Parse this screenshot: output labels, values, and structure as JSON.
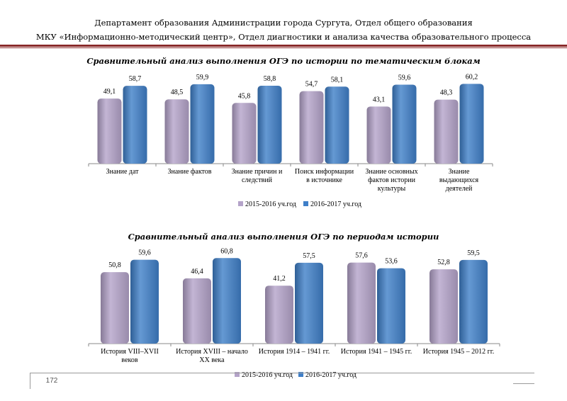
{
  "header": {
    "line1": "Департамент образования Администрации города Сургута, Отдел общего образования",
    "line2": "МКУ «Информационно-методический центр», Отдел диагностики и анализа качества образовательного процесса"
  },
  "footer": {
    "page_number": "172"
  },
  "colors": {
    "series1": "#b4a3c9",
    "series2": "#3f7fc8",
    "rule": "#8a2a2a"
  },
  "chart_data": [
    {
      "type": "bar",
      "title": "Сравнительный анализ выполнения ОГЭ по истории по тематическим блокам",
      "categories": [
        [
          "Знание дат"
        ],
        [
          "Знание фактов"
        ],
        [
          "Знание причин и",
          "следствий"
        ],
        [
          "Поиск информации",
          "в источнике"
        ],
        [
          "Знание основных",
          "фактов истории",
          "культуры"
        ],
        [
          "Знание",
          "выдающихся",
          "деятелей"
        ]
      ],
      "series": [
        {
          "name": "2015-2016 уч.год",
          "values": [
            49.1,
            48.5,
            45.8,
            54.7,
            43.1,
            48.3
          ],
          "labels": [
            "49,1",
            "48,5",
            "45,8",
            "54,7",
            "43,1",
            "48,3"
          ]
        },
        {
          "name": "2016-2017 уч.год",
          "values": [
            58.7,
            59.9,
            58.8,
            58.1,
            59.6,
            60.2
          ],
          "labels": [
            "58,7",
            "59,9",
            "58,8",
            "58,1",
            "59,6",
            "60,2"
          ]
        }
      ],
      "ylim": [
        0,
        70
      ],
      "legend": "bottom"
    },
    {
      "type": "bar",
      "title": "Сравнительный анализ выполнения ОГЭ по периодам истории",
      "categories": [
        [
          "История VIII–XVII",
          "веков"
        ],
        [
          "История XVIII – начало",
          "XX века"
        ],
        [
          "История 1914 – 1941 гг."
        ],
        [
          "История 1941 – 1945 гг."
        ],
        [
          "История 1945 – 2012 гг."
        ]
      ],
      "series": [
        {
          "name": "2015-2016 уч.год",
          "values": [
            50.8,
            46.4,
            41.2,
            57.6,
            52.8
          ],
          "labels": [
            "50,8",
            "46,4",
            "41,2",
            "57,6",
            "52,8"
          ]
        },
        {
          "name": "2016-2017 уч.год",
          "values": [
            59.6,
            60.8,
            57.5,
            53.6,
            59.5
          ],
          "labels": [
            "59,6",
            "60,8",
            "57,5",
            "53,6",
            "59,5"
          ]
        }
      ],
      "ylim": [
        0,
        70
      ],
      "legend": "bottom"
    }
  ]
}
